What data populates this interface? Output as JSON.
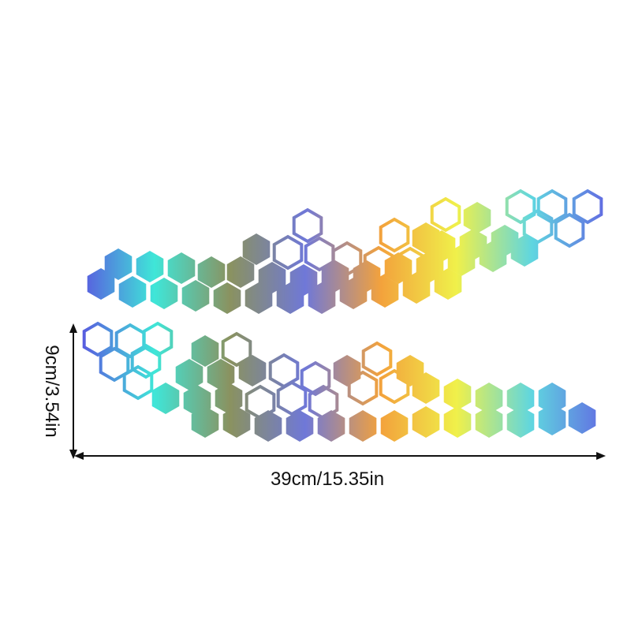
{
  "product": {
    "height_label": "9cm/3.54in",
    "width_label": "39cm/15.35in"
  },
  "colors": {
    "gradient": [
      "#5a55e0",
      "#3fe6d8",
      "#8a9260",
      "#6f78d8",
      "#f3a23c",
      "#f0f04a",
      "#5fd6e0",
      "#6268e2"
    ],
    "arrow": "#111111"
  },
  "icons": [
    "hexagon-decal-icon",
    "dimension-arrow-icon"
  ]
}
